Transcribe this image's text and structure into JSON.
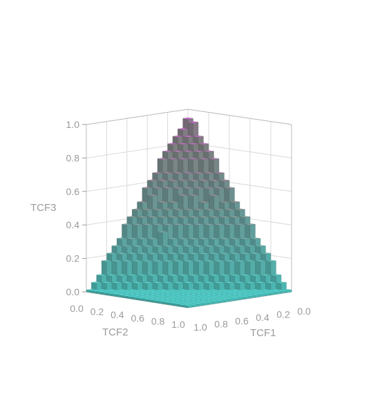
{
  "chart_data": {
    "type": "voxel-surface",
    "title": "",
    "axes": {
      "x": {
        "label": "TCF1",
        "range": [
          0,
          1
        ],
        "ticks": [
          0.0,
          0.2,
          0.4,
          0.6,
          0.8,
          1.0
        ]
      },
      "y": {
        "label": "TCF2",
        "range": [
          0,
          1
        ],
        "ticks": [
          0.0,
          0.2,
          0.4,
          0.6,
          0.8,
          1.0
        ]
      },
      "z": {
        "label": "TCF3",
        "range": [
          0,
          1
        ],
        "ticks": [
          0.0,
          0.2,
          0.4,
          0.6,
          0.8,
          1.0
        ]
      }
    },
    "tick_labels": {
      "x": [
        "1.0",
        "0.8",
        "0.6",
        "0.4",
        "0.2",
        "0.0"
      ],
      "y": [
        "0.0",
        "0.2",
        "0.4",
        "0.6",
        "0.8",
        "1.0"
      ],
      "z": [
        "0.0",
        "0.2",
        "0.4",
        "0.6",
        "0.8",
        "1.0"
      ]
    },
    "grid": true,
    "colormap": {
      "low": "#4fc9c4",
      "mid": "#8a8a8a",
      "high": "#c061c8"
    },
    "surface": {
      "description_of_values": "TCF3 = 1 - TCF1 - TCF2 (simplex, blocky voxels)",
      "grid_step": 0.05,
      "peak_value": 0.95
    }
  }
}
